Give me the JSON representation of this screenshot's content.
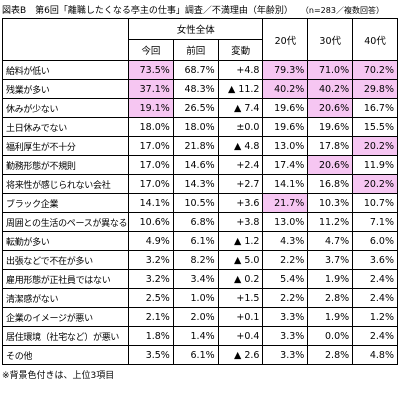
{
  "header": {
    "title": "図表B　第6回「離職したくなる亭主の仕事」調査／不満理由（年齢別）",
    "note": "（n=283／複数回答）"
  },
  "table": {
    "group_header": "女性全体",
    "columns": [
      "今回",
      "前回",
      "変動",
      "20代",
      "30代",
      "40代"
    ],
    "rows": [
      [
        "給料が低い",
        "73.5%",
        "68.7%",
        "+4.8",
        "79.3%",
        "71.0%",
        "70.2%"
      ],
      [
        "残業が多い",
        "37.1%",
        "48.3%",
        "▲ 11.2",
        "40.2%",
        "40.2%",
        "29.8%"
      ],
      [
        "休みが少ない",
        "19.1%",
        "26.5%",
        "▲ 7.4",
        "19.6%",
        "20.6%",
        "16.7%"
      ],
      [
        "土日休みでない",
        "18.0%",
        "18.0%",
        "±0.0",
        "19.6%",
        "19.6%",
        "15.5%"
      ],
      [
        "福利厚生が不十分",
        "17.0%",
        "21.8%",
        "▲ 4.8",
        "13.0%",
        "17.8%",
        "20.2%"
      ],
      [
        "勤務形態が不規則",
        "17.0%",
        "14.6%",
        "+2.4",
        "17.4%",
        "20.6%",
        "11.9%"
      ],
      [
        "将来性が感じられない会社",
        "17.0%",
        "14.3%",
        "+2.7",
        "14.1%",
        "16.8%",
        "20.2%"
      ],
      [
        "ブラック企業",
        "14.1%",
        "10.5%",
        "+3.6",
        "21.7%",
        "10.3%",
        "10.7%"
      ],
      [
        "周囲との生活のペースが異なる",
        "10.6%",
        "6.8%",
        "+3.8",
        "13.0%",
        "11.2%",
        "7.1%"
      ],
      [
        "転勤が多い",
        "4.9%",
        "6.1%",
        "▲ 1.2",
        "4.3%",
        "4.7%",
        "6.0%"
      ],
      [
        "出張などで不在が多い",
        "3.2%",
        "8.2%",
        "▲ 5.0",
        "2.2%",
        "3.7%",
        "3.6%"
      ],
      [
        "雇用形態が正社員ではない",
        "3.2%",
        "3.4%",
        "▲ 0.2",
        "5.4%",
        "1.9%",
        "2.4%"
      ],
      [
        "清潔感がない",
        "2.5%",
        "1.0%",
        "+1.5",
        "2.2%",
        "2.8%",
        "2.4%"
      ],
      [
        "企業のイメージが悪い",
        "2.1%",
        "2.0%",
        "+0.1",
        "3.3%",
        "1.9%",
        "1.2%"
      ],
      [
        "居住環境（社宅など）が悪い",
        "1.8%",
        "1.4%",
        "+0.4",
        "3.3%",
        "0.0%",
        "2.4%"
      ],
      [
        "その他",
        "3.5%",
        "6.1%",
        "▲ 2.6",
        "3.3%",
        "2.8%",
        "4.8%"
      ]
    ]
  },
  "footer": "※背景色付きは、上位3項目"
}
